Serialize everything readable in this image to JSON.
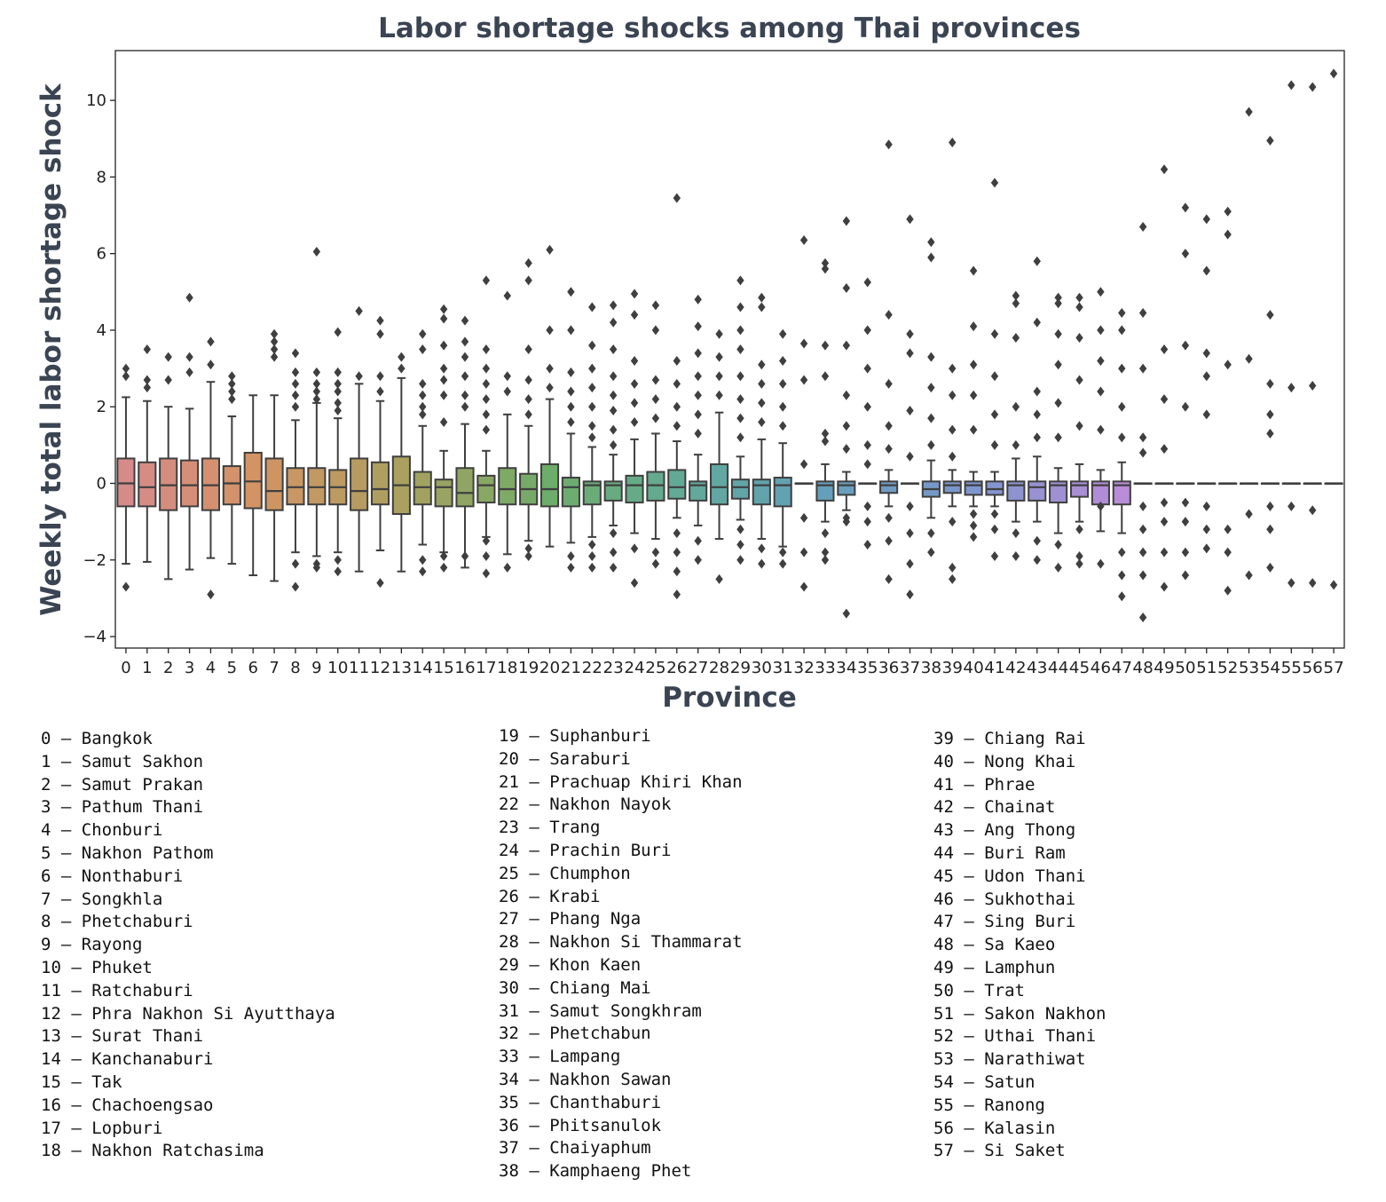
{
  "chart_data": {
    "type": "box",
    "title": "Labor shortage shocks among Thai provinces",
    "xlabel": "Province",
    "ylabel": "Weekly total labor shortage shock",
    "ylim": [
      -4.3,
      11.3
    ],
    "yticks": [
      -4,
      -2,
      0,
      2,
      4,
      6,
      8,
      10
    ],
    "ytick_labels": [
      "−4",
      "−2",
      "0",
      "2",
      "4",
      "6",
      "8",
      "10"
    ],
    "categories": [
      "0",
      "1",
      "2",
      "3",
      "4",
      "5",
      "6",
      "7",
      "8",
      "9",
      "10",
      "11",
      "12",
      "13",
      "14",
      "15",
      "16",
      "17",
      "18",
      "19",
      "20",
      "21",
      "22",
      "23",
      "24",
      "25",
      "26",
      "27",
      "28",
      "29",
      "30",
      "31",
      "32",
      "33",
      "34",
      "35",
      "36",
      "37",
      "38",
      "39",
      "40",
      "41",
      "42",
      "43",
      "44",
      "45",
      "46",
      "47",
      "48",
      "49",
      "50",
      "51",
      "52",
      "53",
      "54",
      "55",
      "56",
      "57"
    ],
    "boxes": [
      {
        "q1": -0.6,
        "median": 0,
        "q3": 0.65,
        "wlo": -2.1,
        "whi": 2.25,
        "outliers": [
          3.0,
          2.8,
          -2.7
        ]
      },
      {
        "q1": -0.6,
        "median": -0.1,
        "q3": 0.55,
        "wlo": -2.05,
        "whi": 2.15,
        "outliers": [
          3.5,
          2.7,
          2.5
        ]
      },
      {
        "q1": -0.7,
        "median": -0.05,
        "q3": 0.65,
        "wlo": -2.5,
        "whi": 2.0,
        "outliers": [
          3.3,
          2.7
        ]
      },
      {
        "q1": -0.6,
        "median": -0.05,
        "q3": 0.6,
        "wlo": -2.25,
        "whi": 1.95,
        "outliers": [
          4.85,
          3.3,
          2.9
        ]
      },
      {
        "q1": -0.7,
        "median": -0.05,
        "q3": 0.65,
        "wlo": -1.95,
        "whi": 2.65,
        "outliers": [
          3.7,
          3.1,
          -2.9
        ]
      },
      {
        "q1": -0.55,
        "median": 0,
        "q3": 0.45,
        "wlo": -2.1,
        "whi": 1.75,
        "outliers": [
          2.8,
          2.6,
          2.4,
          2.2
        ]
      },
      {
        "q1": -0.65,
        "median": 0.05,
        "q3": 0.8,
        "wlo": -2.4,
        "whi": 2.3,
        "outliers": []
      },
      {
        "q1": -0.7,
        "median": -0.2,
        "q3": 0.65,
        "wlo": -2.55,
        "whi": 2.3,
        "outliers": [
          3.9,
          3.7,
          3.5,
          3.3
        ]
      },
      {
        "q1": -0.55,
        "median": -0.1,
        "q3": 0.4,
        "wlo": -1.8,
        "whi": 1.65,
        "outliers": [
          3.4,
          2.9,
          2.6,
          2.3,
          2.0,
          -2.1,
          -2.7
        ]
      },
      {
        "q1": -0.55,
        "median": -0.1,
        "q3": 0.4,
        "wlo": -1.9,
        "whi": 2.1,
        "outliers": [
          6.05,
          2.9,
          2.6,
          2.4,
          2.2,
          -2.1,
          -2.2
        ]
      },
      {
        "q1": -0.55,
        "median": -0.1,
        "q3": 0.35,
        "wlo": -1.8,
        "whi": 1.7,
        "outliers": [
          3.95,
          2.9,
          2.6,
          2.4,
          2.1,
          1.9,
          -2.0,
          -2.3
        ]
      },
      {
        "q1": -0.7,
        "median": -0.2,
        "q3": 0.65,
        "wlo": -2.3,
        "whi": 2.6,
        "outliers": [
          4.5,
          2.8
        ]
      },
      {
        "q1": -0.55,
        "median": -0.15,
        "q3": 0.55,
        "wlo": -1.75,
        "whi": 2.15,
        "outliers": [
          4.25,
          3.9,
          2.8,
          2.4,
          -2.6
        ]
      },
      {
        "q1": -0.8,
        "median": -0.05,
        "q3": 0.7,
        "wlo": -2.3,
        "whi": 2.75,
        "outliers": [
          3.3,
          3.0
        ]
      },
      {
        "q1": -0.55,
        "median": -0.1,
        "q3": 0.3,
        "wlo": -1.6,
        "whi": 1.5,
        "outliers": [
          3.9,
          3.5,
          2.6,
          2.3,
          2.0,
          1.8,
          -2.0,
          -2.3
        ]
      },
      {
        "q1": -0.6,
        "median": -0.1,
        "q3": 0.1,
        "wlo": -1.8,
        "whi": 0.85,
        "outliers": [
          4.55,
          4.3,
          3.6,
          3.0,
          2.7,
          2.3,
          1.6,
          -1.9,
          -2.2
        ]
      },
      {
        "q1": -0.6,
        "median": -0.25,
        "q3": 0.4,
        "wlo": -2.2,
        "whi": 1.55,
        "outliers": [
          4.25,
          3.7,
          3.3,
          2.8,
          2.3,
          2.0,
          -1.9
        ]
      },
      {
        "q1": -0.5,
        "median": -0.05,
        "q3": 0.2,
        "wlo": -1.4,
        "whi": 0.85,
        "outliers": [
          5.3,
          3.5,
          3.0,
          2.6,
          2.2,
          1.8,
          1.4,
          -1.5,
          -1.9,
          -2.35
        ]
      },
      {
        "q1": -0.55,
        "median": -0.15,
        "q3": 0.4,
        "wlo": -1.85,
        "whi": 1.8,
        "outliers": [
          4.9,
          2.8,
          2.4,
          -2.2
        ]
      },
      {
        "q1": -0.55,
        "median": -0.15,
        "q3": 0.25,
        "wlo": -1.5,
        "whi": 1.5,
        "outliers": [
          5.75,
          5.3,
          3.5,
          2.7,
          2.2,
          1.8,
          -1.7,
          -1.9
        ]
      },
      {
        "q1": -0.6,
        "median": -0.15,
        "q3": 0.5,
        "wlo": -1.65,
        "whi": 2.2,
        "outliers": [
          6.1,
          4.0,
          3.0,
          2.5
        ]
      },
      {
        "q1": -0.6,
        "median": -0.1,
        "q3": 0.15,
        "wlo": -1.55,
        "whi": 1.3,
        "outliers": [
          5.0,
          4.0,
          2.9,
          2.4,
          2.0,
          1.6,
          -1.9,
          -2.2
        ]
      },
      {
        "q1": -0.55,
        "median": -0.05,
        "q3": 0.05,
        "wlo": -1.4,
        "whi": 0.95,
        "outliers": [
          4.6,
          3.6,
          3.0,
          2.5,
          2.0,
          1.5,
          1.2,
          -1.6,
          -1.9,
          -2.2
        ]
      },
      {
        "q1": -0.45,
        "median": -0.05,
        "q3": 0.05,
        "wlo": -1.1,
        "whi": 0.75,
        "outliers": [
          4.65,
          4.2,
          3.5,
          2.8,
          2.3,
          1.9,
          1.4,
          1.0,
          -1.3,
          -1.8,
          -2.2
        ]
      },
      {
        "q1": -0.5,
        "median": -0.05,
        "q3": 0.2,
        "wlo": -1.3,
        "whi": 1.15,
        "outliers": [
          4.95,
          4.4,
          3.2,
          2.6,
          2.1,
          1.6,
          -1.7,
          -2.6
        ]
      },
      {
        "q1": -0.45,
        "median": -0.05,
        "q3": 0.3,
        "wlo": -1.45,
        "whi": 1.3,
        "outliers": [
          4.65,
          4.0,
          2.7,
          2.2,
          1.7,
          -1.8,
          -2.1
        ]
      },
      {
        "q1": -0.4,
        "median": -0.1,
        "q3": 0.35,
        "wlo": -0.9,
        "whi": 1.1,
        "outliers": [
          7.45,
          3.2,
          2.6,
          2.0,
          1.5,
          -1.3,
          -1.8,
          -2.3,
          -2.9
        ]
      },
      {
        "q1": -0.45,
        "median": -0.05,
        "q3": 0.05,
        "wlo": -1.1,
        "whi": 0.75,
        "outliers": [
          4.8,
          4.1,
          3.4,
          2.8,
          2.3,
          1.8,
          1.3,
          -1.5,
          -2.0
        ]
      },
      {
        "q1": -0.55,
        "median": -0.1,
        "q3": 0.5,
        "wlo": -1.45,
        "whi": 1.85,
        "outliers": [
          3.9,
          3.3,
          2.8,
          2.3,
          -2.5
        ]
      },
      {
        "q1": -0.4,
        "median": -0.1,
        "q3": 0.1,
        "wlo": -0.95,
        "whi": 0.7,
        "outliers": [
          5.3,
          4.6,
          4.0,
          3.5,
          2.8,
          2.2,
          1.7,
          1.2,
          -1.2,
          -1.6,
          -2.0
        ]
      },
      {
        "q1": -0.55,
        "median": -0.05,
        "q3": 0.1,
        "wlo": -1.45,
        "whi": 1.15,
        "outliers": [
          4.85,
          4.6,
          3.1,
          2.6,
          2.1,
          1.6,
          -1.7,
          -2.1
        ]
      },
      {
        "q1": -0.6,
        "median": -0.05,
        "q3": 0.15,
        "wlo": -1.65,
        "whi": 1.05,
        "outliers": [
          3.9,
          3.2,
          2.6,
          2.0,
          1.5,
          -1.8,
          -2.1
        ]
      },
      {
        "q1": 0,
        "median": 0,
        "q3": 0,
        "wlo": 0,
        "whi": 0,
        "outliers": [
          6.35,
          3.65,
          2.7,
          0.5,
          -0.9,
          -1.8,
          -2.7
        ]
      },
      {
        "q1": -0.45,
        "median": -0.05,
        "q3": 0.05,
        "wlo": -1.0,
        "whi": 0.5,
        "outliers": [
          5.75,
          5.6,
          3.6,
          2.8,
          1.3,
          1.1,
          -1.3,
          -1.8,
          -2.0
        ]
      },
      {
        "q1": -0.3,
        "median": -0.05,
        "q3": 0.05,
        "wlo": -0.7,
        "whi": 0.3,
        "outliers": [
          6.85,
          5.1,
          3.6,
          2.3,
          1.5,
          0.9,
          -0.9,
          -1.0,
          -3.4
        ]
      },
      {
        "q1": 0,
        "median": 0,
        "q3": 0,
        "wlo": 0,
        "whi": 0,
        "outliers": [
          5.25,
          4.0,
          3.0,
          2.0,
          1.0,
          0.5,
          -0.6,
          -1.0,
          -1.6
        ]
      },
      {
        "q1": -0.25,
        "median": -0.05,
        "q3": 0.05,
        "wlo": -0.6,
        "whi": 0.35,
        "outliers": [
          8.85,
          4.4,
          2.6,
          1.5,
          0.9,
          -0.9,
          -1.5,
          -2.5
        ]
      },
      {
        "q1": 0,
        "median": 0,
        "q3": 0,
        "wlo": 0,
        "whi": 0,
        "outliers": [
          6.9,
          3.9,
          3.4,
          1.9,
          0.7,
          -0.6,
          -1.3,
          -2.1,
          -2.9
        ]
      },
      {
        "q1": -0.35,
        "median": -0.15,
        "q3": 0.05,
        "wlo": -0.9,
        "whi": 0.6,
        "outliers": [
          6.3,
          5.9,
          3.3,
          2.5,
          1.7,
          1.0,
          -1.3,
          -1.8
        ]
      },
      {
        "q1": -0.25,
        "median": -0.05,
        "q3": 0.05,
        "wlo": -0.6,
        "whi": 0.35,
        "outliers": [
          8.9,
          3.0,
          2.3,
          1.4,
          0.7,
          -1.0,
          -2.2,
          -2.5
        ]
      },
      {
        "q1": -0.3,
        "median": -0.05,
        "q3": 0.05,
        "wlo": -0.6,
        "whi": 0.3,
        "outliers": [
          5.55,
          4.1,
          3.1,
          2.3,
          1.4,
          -0.8,
          -1.1,
          -1.4
        ]
      },
      {
        "q1": -0.3,
        "median": -0.15,
        "q3": 0.05,
        "wlo": -0.6,
        "whi": 0.3,
        "outliers": [
          7.85,
          3.9,
          2.8,
          1.8,
          1.0,
          -0.8,
          -1.2,
          -1.9
        ]
      },
      {
        "q1": -0.45,
        "median": -0.05,
        "q3": 0.05,
        "wlo": -1.0,
        "whi": 0.65,
        "outliers": [
          4.9,
          4.7,
          3.8,
          2.0,
          1.0,
          -1.3,
          -1.9
        ]
      },
      {
        "q1": -0.45,
        "median": -0.1,
        "q3": 0.05,
        "wlo": -1.0,
        "whi": 0.7,
        "outliers": [
          5.8,
          4.2,
          2.4,
          1.8,
          1.2,
          -1.5,
          -2.0
        ]
      },
      {
        "q1": -0.5,
        "median": -0.05,
        "q3": 0.05,
        "wlo": -1.3,
        "whi": 0.4,
        "outliers": [
          4.85,
          4.7,
          3.9,
          3.1,
          2.1,
          1.2,
          -1.6,
          -2.2
        ]
      },
      {
        "q1": -0.35,
        "median": -0.05,
        "q3": 0.05,
        "wlo": -1.0,
        "whi": 0.5,
        "outliers": [
          4.85,
          4.6,
          3.8,
          2.7,
          1.5,
          -1.2,
          -1.9,
          -2.1
        ]
      },
      {
        "q1": -0.55,
        "median": -0.05,
        "q3": 0.05,
        "wlo": -1.25,
        "whi": 0.35,
        "outliers": [
          5.0,
          4.0,
          3.2,
          2.4,
          1.4,
          -0.6,
          -2.1
        ]
      },
      {
        "q1": -0.55,
        "median": -0.05,
        "q3": 0.05,
        "wlo": -1.3,
        "whi": 0.55,
        "outliers": [
          4.45,
          4.0,
          3.0,
          2.0,
          1.2,
          -1.8,
          -2.4,
          -2.95
        ]
      },
      {
        "q1": 0,
        "median": 0,
        "q3": 0,
        "wlo": 0,
        "whi": 0,
        "outliers": [
          6.7,
          4.45,
          3.0,
          1.2,
          0.8,
          -0.6,
          -1.2,
          -1.8,
          -2.4,
          -3.5
        ]
      },
      {
        "q1": 0,
        "median": 0,
        "q3": 0,
        "wlo": 0,
        "whi": 0,
        "outliers": [
          8.2,
          3.5,
          2.2,
          0.9,
          -0.5,
          -1.0,
          -1.8,
          -2.7
        ]
      },
      {
        "q1": 0,
        "median": 0,
        "q3": 0,
        "wlo": 0,
        "whi": 0,
        "outliers": [
          7.2,
          6.0,
          3.6,
          2.0,
          -0.5,
          -1.0,
          -1.8,
          -2.4
        ]
      },
      {
        "q1": 0,
        "median": 0,
        "q3": 0,
        "wlo": 0,
        "whi": 0,
        "outliers": [
          6.9,
          5.55,
          3.4,
          2.8,
          1.8,
          -0.6,
          -1.2,
          -1.7
        ]
      },
      {
        "q1": 0,
        "median": 0,
        "q3": 0,
        "wlo": 0,
        "whi": 0,
        "outliers": [
          7.1,
          6.5,
          3.1,
          -1.2,
          -1.8,
          -2.8
        ]
      },
      {
        "q1": 0,
        "median": 0,
        "q3": 0,
        "wlo": 0,
        "whi": 0,
        "outliers": [
          9.7,
          3.25,
          -0.8,
          -2.4
        ]
      },
      {
        "q1": 0,
        "median": 0,
        "q3": 0,
        "wlo": 0,
        "whi": 0,
        "outliers": [
          8.95,
          4.4,
          2.6,
          1.8,
          1.3,
          -0.6,
          -1.2,
          -2.2
        ]
      },
      {
        "q1": 0,
        "median": 0,
        "q3": 0,
        "wlo": 0,
        "whi": 0,
        "outliers": [
          10.4,
          2.5,
          -0.6,
          -2.6
        ]
      },
      {
        "q1": 0,
        "median": 0,
        "q3": 0,
        "wlo": 0,
        "whi": 0,
        "outliers": [
          10.35,
          2.55,
          -0.7,
          -2.6
        ]
      },
      {
        "q1": 0,
        "median": 0,
        "q3": 0,
        "wlo": 0,
        "whi": 0,
        "outliers": [
          10.7,
          -2.65
        ]
      }
    ]
  },
  "legend": {
    "col1": [
      "0 – Bangkok",
      "1 – Samut Sakhon",
      "2 – Samut Prakan",
      "3 – Pathum Thani",
      "4 – Chonburi",
      "5 – Nakhon Pathom",
      "6 – Nonthaburi",
      "7 – Songkhla",
      "8 – Phetchaburi",
      "9 – Rayong",
      "10 – Phuket",
      "11 – Ratchaburi",
      "12 – Phra Nakhon Si Ayutthaya",
      "13 – Surat Thani",
      "14 – Kanchanaburi",
      "15 – Tak",
      "16 – Chachoengsao",
      "17 – Lopburi",
      "18 – Nakhon Ratchasima"
    ],
    "col2": [
      "19 – Suphanburi",
      "20 – Saraburi",
      "21 – Prachuap Khiri Khan",
      "22 – Nakhon Nayok",
      "23 – Trang",
      "24 – Prachin Buri",
      "25 – Chumphon",
      "26 – Krabi",
      "27 – Phang Nga",
      "28 – Nakhon Si Thammarat",
      "29 – Khon Kaen",
      "30 – Chiang Mai",
      "31 – Samut Songkhram",
      "32 – Phetchabun",
      "33 – Lampang",
      "34 – Nakhon Sawan",
      "35 – Chanthaburi",
      "36 – Phitsanulok",
      "37 – Chaiyaphum",
      "38 – Kamphaeng Phet"
    ],
    "col3": [
      "39 – Chiang Rai",
      "40 – Nong Khai",
      "41 – Phrae",
      "42 – Chainat",
      "43 – Ang Thong",
      "44 – Buri Ram",
      "45 – Udon Thani",
      "46 – Sukhothai",
      "47 – Sing Buri",
      "48 – Sa Kaeo",
      "49 – Lamphun",
      "50 – Trat",
      "51 – Sakon Nakhon",
      "52 – Uthai Thani",
      "53 – Narathiwat",
      "54 – Satun",
      "55 – Ranong",
      "56 – Kalasin",
      "57 – Si Saket"
    ]
  }
}
